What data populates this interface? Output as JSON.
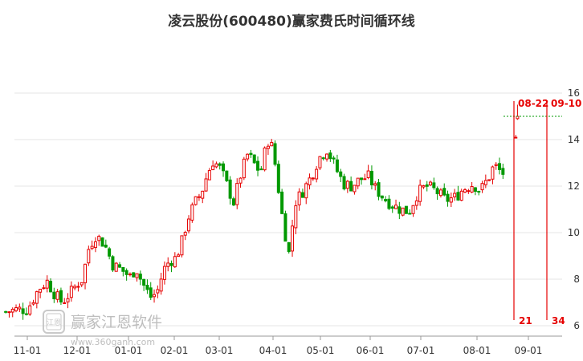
{
  "chart_data": {
    "type": "candlestick",
    "title": "凌云股份(600480)赢家费氏时间循环线",
    "x_ticks": [
      "11-01",
      "12-01",
      "01-01",
      "02-01",
      "03-01",
      "04-01",
      "05-01",
      "06-01",
      "07-01",
      "08-01",
      "09-01"
    ],
    "y_ticks": [
      6,
      8,
      10,
      12,
      14,
      16
    ],
    "ylim": [
      6,
      16
    ],
    "grid": "horizontal",
    "y_axis": "right",
    "colors": {
      "up": "#e60000",
      "down": "#009900",
      "annotation": "#e60000",
      "grid": "#e6e6e6"
    },
    "reference_level": 15.0,
    "cycle_lines": [
      {
        "date": "08-22",
        "count": "21"
      },
      {
        "date": "09-10",
        "count": "34"
      }
    ],
    "price_path": [
      [
        "10-18",
        6.6
      ],
      [
        "10-25",
        6.7
      ],
      [
        "11-01",
        6.7
      ],
      [
        "11-08",
        7.6
      ],
      [
        "11-13",
        7.9
      ],
      [
        "11-18",
        7.3
      ],
      [
        "11-22",
        7.0
      ],
      [
        "11-28",
        7.5
      ],
      [
        "12-01",
        7.8
      ],
      [
        "12-04",
        8.0
      ],
      [
        "12-08",
        9.4
      ],
      [
        "12-12",
        9.9
      ],
      [
        "12-17",
        9.5
      ],
      [
        "12-22",
        8.6
      ],
      [
        "12-27",
        8.4
      ],
      [
        "01-02",
        8.1
      ],
      [
        "01-06",
        8.5
      ],
      [
        "01-09",
        8.0
      ],
      [
        "01-12",
        7.6
      ],
      [
        "01-16",
        7.2
      ],
      [
        "01-20",
        7.5
      ],
      [
        "01-24",
        8.4
      ],
      [
        "01-28",
        8.8
      ],
      [
        "02-02",
        8.9
      ],
      [
        "02-06",
        9.6
      ],
      [
        "02-10",
        10.6
      ],
      [
        "02-15",
        11.3
      ],
      [
        "02-19",
        11.7
      ],
      [
        "02-23",
        12.5
      ],
      [
        "02-27",
        13.1
      ],
      [
        "03-02",
        12.7
      ],
      [
        "03-06",
        11.9
      ],
      [
        "03-09",
        11.3
      ],
      [
        "03-13",
        12.5
      ],
      [
        "03-17",
        13.4
      ],
      [
        "03-20",
        13.0
      ],
      [
        "03-24",
        12.6
      ],
      [
        "03-28",
        14.0
      ],
      [
        "04-01",
        13.6
      ],
      [
        "04-03",
        12.6
      ],
      [
        "04-07",
        10.6
      ],
      [
        "04-11",
        9.1
      ],
      [
        "04-15",
        11.3
      ],
      [
        "04-20",
        11.8
      ],
      [
        "04-25",
        12.4
      ],
      [
        "04-30",
        13.2
      ],
      [
        "05-05",
        13.6
      ],
      [
        "05-10",
        12.8
      ],
      [
        "05-15",
        12.1
      ],
      [
        "05-20",
        12.0
      ],
      [
        "05-25",
        12.3
      ],
      [
        "05-30",
        12.4
      ],
      [
        "06-04",
        11.9
      ],
      [
        "06-09",
        11.5
      ],
      [
        "06-14",
        11.2
      ],
      [
        "06-19",
        11.0
      ],
      [
        "06-24",
        10.9
      ],
      [
        "06-29",
        11.7
      ],
      [
        "07-04",
        12.0
      ],
      [
        "07-09",
        11.8
      ],
      [
        "07-14",
        11.4
      ],
      [
        "07-19",
        11.5
      ],
      [
        "07-24",
        11.9
      ],
      [
        "07-29",
        12.1
      ],
      [
        "08-03",
        11.8
      ],
      [
        "08-08",
        12.4
      ],
      [
        "08-11",
        12.9
      ],
      [
        "08-15",
        12.6
      ],
      [
        "08-18",
        12.5
      ]
    ],
    "isolated_candles": [
      [
        "08-18",
        14.1,
        14.2,
        14.05,
        14.1
      ],
      [
        "08-19",
        14.9,
        15.5,
        14.85,
        15.0
      ]
    ]
  },
  "watermark": {
    "name": "赢家江恩软件",
    "url": "www.360gann.com",
    "logo_text": "江恩"
  }
}
